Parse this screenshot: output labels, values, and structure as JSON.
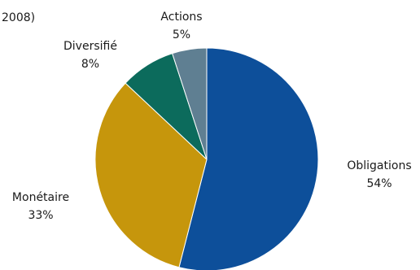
{
  "chart_data": {
    "type": "pie",
    "title_fragment": "2008)",
    "start_angle_deg": 0,
    "direction": "clockwise",
    "slices": [
      {
        "name": "Obligations",
        "value": 54,
        "label": "54%",
        "color": "#0d4f9a"
      },
      {
        "name": "Monétaire",
        "value": 33,
        "label": "33%",
        "color": "#c6960c"
      },
      {
        "name": "Diversifié",
        "value": 8,
        "label": "8%",
        "color": "#0c6b5c"
      },
      {
        "name": "Actions",
        "value": 5,
        "label": "5%",
        "color": "#5f7f92"
      }
    ]
  }
}
